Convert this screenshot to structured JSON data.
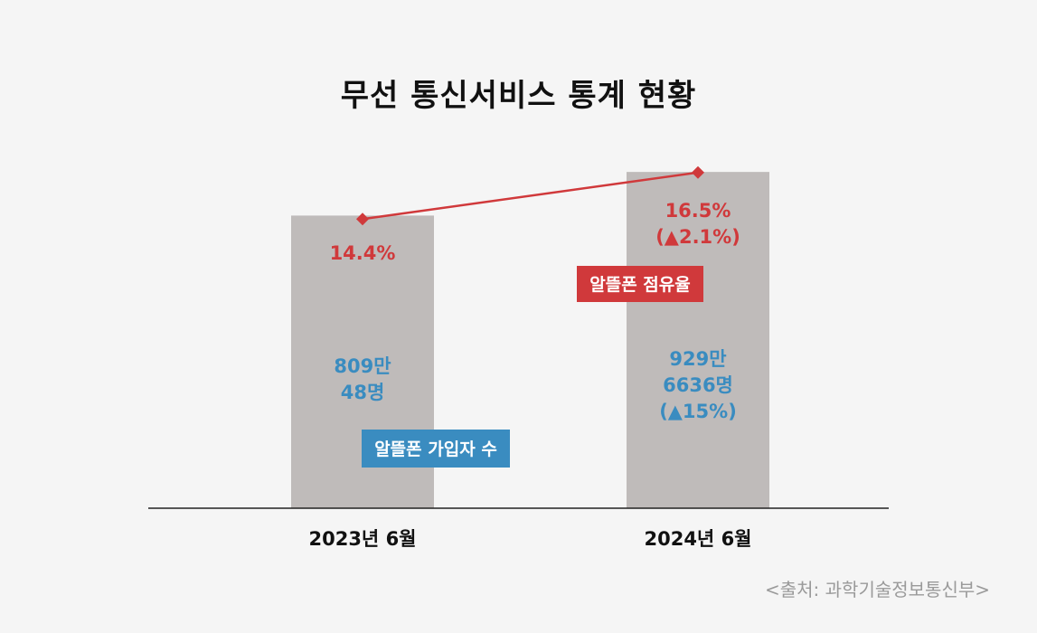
{
  "chart_data": {
    "type": "bar",
    "title": "무선 통신서비스 통계 현황",
    "categories": [
      "2023년 6월",
      "2024년 6월"
    ],
    "series": [
      {
        "name": "알뜰폰 가입자 수",
        "values": [
          8090048,
          9296636
        ],
        "labels": [
          [
            "809만",
            "48명"
          ],
          [
            "929만",
            "6636명",
            "(▲15%)"
          ]
        ],
        "color": "#3a8cc0"
      },
      {
        "name": "알뜰폰 점유율",
        "type": "line",
        "values": [
          14.4,
          16.5
        ],
        "labels": [
          [
            "14.4%"
          ],
          [
            "16.5%",
            "(▲2.1%)"
          ]
        ],
        "color": "#d0393b"
      }
    ],
    "bar_color": "#bfbbba",
    "xlabel": "",
    "ylabel": ""
  },
  "source": "<출처: 과학기술정보통신부>"
}
